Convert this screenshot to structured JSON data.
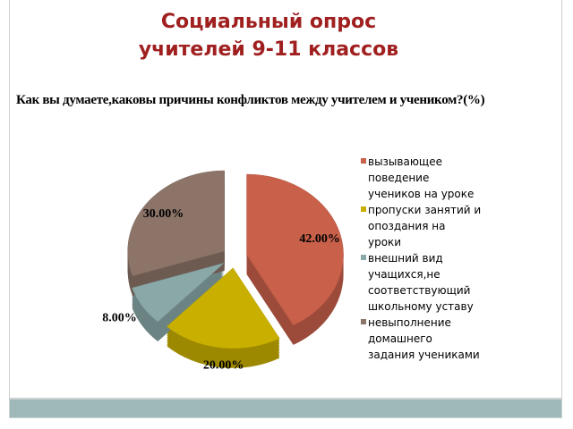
{
  "slide": {
    "title": [
      "Социальный опрос",
      "учителей 9-11 классов"
    ]
  },
  "chart_data": {
    "type": "pie",
    "title": "Как вы думаете,каковы причины конфликтов между учителем и учеником?(%)",
    "categories": [
      "вызывающее поведение учеников на уроке",
      "пропуски занятий и опоздания на уроки",
      "внешний вид учащихся,не соответствующий школьному уставу",
      "невыполнение домашнего задания учениками"
    ],
    "values": [
      42,
      20,
      8,
      30
    ],
    "value_labels": [
      "42.00%",
      "20.00%",
      "8.00%",
      "30.00%"
    ],
    "colors": [
      "#c8604a",
      "#c9b000",
      "#8aa8a8",
      "#8c7468"
    ],
    "legend": "right"
  }
}
